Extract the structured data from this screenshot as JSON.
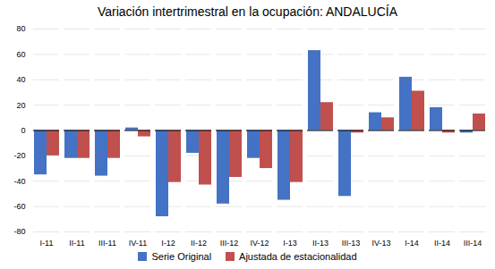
{
  "chart_data": {
    "type": "bar",
    "title": "Variación intertrimestral en la ocupación: ANDALUCÍA",
    "categories": [
      "I-11",
      "II-11",
      "III-11",
      "IV-11",
      "I-12",
      "II-12",
      "III-12",
      "IV-12",
      "I-13",
      "II-13",
      "III-13",
      "IV-13",
      "I-14",
      "II-14",
      "III-14"
    ],
    "series": [
      {
        "name": "Serie Original",
        "color": "#4472C4",
        "values": [
          -35,
          -22,
          -36,
          2,
          -68,
          -18,
          -58,
          -22,
          -55,
          63,
          -52,
          14,
          42,
          18,
          -2
        ]
      },
      {
        "name": "Ajustada de estacionalidad",
        "color": "#C0504D",
        "values": [
          -20,
          -22,
          -22,
          -5,
          -41,
          -43,
          -37,
          -30,
          -41,
          22,
          -2,
          10,
          31,
          -2,
          13
        ]
      }
    ],
    "ylim": [
      -80,
      80
    ],
    "yticks": [
      -80,
      -60,
      -40,
      -20,
      0,
      20,
      40,
      60,
      80
    ],
    "grid": true,
    "legend": "bottom"
  }
}
